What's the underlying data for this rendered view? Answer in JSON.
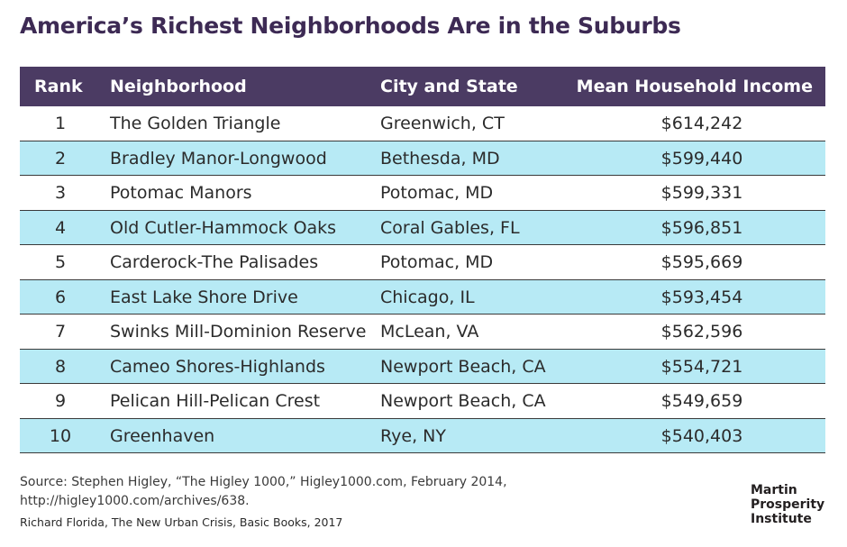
{
  "title": "America’s Richest Neighborhoods Are in the Suburbs",
  "chart_data": {
    "type": "table",
    "columns": [
      "Rank",
      "Neighborhood",
      "City and State",
      "Mean Household Income"
    ],
    "rows": [
      [
        "1",
        "The Golden Triangle",
        "Greenwich, CT",
        "$614,242"
      ],
      [
        "2",
        "Bradley Manor-Longwood",
        "Bethesda, MD",
        "$599,440"
      ],
      [
        "3",
        "Potomac Manors",
        "Potomac, MD",
        "$599,331"
      ],
      [
        "4",
        "Old Cutler-Hammock Oaks",
        "Coral Gables, FL",
        "$596,851"
      ],
      [
        "5",
        "Carderock-The Palisades",
        "Potomac, MD",
        "$595,669"
      ],
      [
        "6",
        "East Lake Shore Drive",
        "Chicago, IL",
        "$593,454"
      ],
      [
        "7",
        "Swinks Mill-Dominion Reserve",
        "McLean, VA",
        "$562,596"
      ],
      [
        "8",
        "Cameo Shores-Highlands",
        "Newport Beach, CA",
        "$554,721"
      ],
      [
        "9",
        "Pelican Hill-Pelican Crest",
        "Newport Beach, CA",
        "$549,659"
      ],
      [
        "10",
        "Greenhaven",
        "Rye, NY",
        "$540,403"
      ]
    ]
  },
  "source": {
    "line1": "Source: Stephen Higley, “The Higley 1000,” Higley1000.com, February 2014,",
    "line2": "http://higley1000.com/archives/638."
  },
  "credit": "Richard Florida, The New Urban Crisis, Basic Books, 2017",
  "logo": [
    "Martin",
    "Prosperity",
    "Institute"
  ],
  "colors": {
    "header_bg": "#4b3b63",
    "title": "#3d2a54",
    "alt_row": "#b7eaf5"
  }
}
